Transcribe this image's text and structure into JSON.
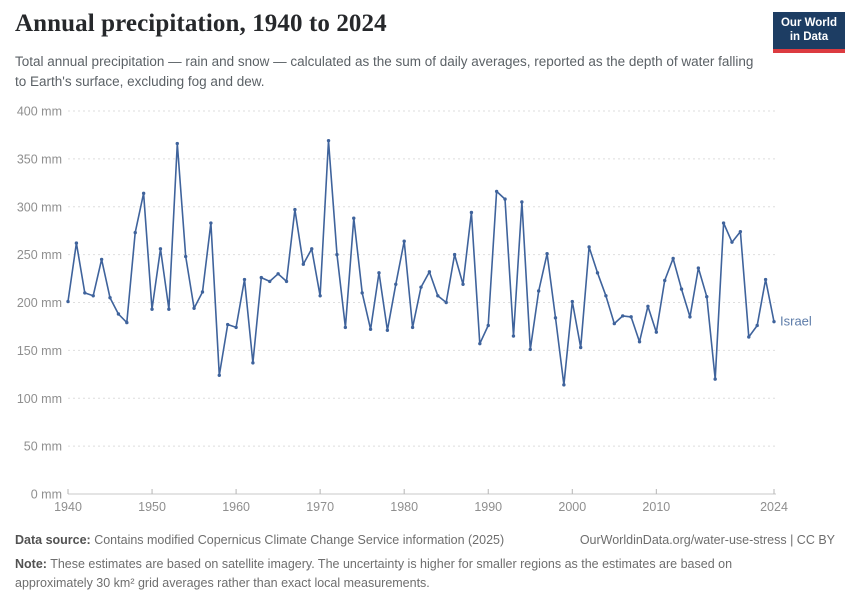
{
  "header": {
    "title": "Annual precipitation, 1940 to 2024",
    "subtitle": "Total annual precipitation — rain and snow — calculated as the sum of daily averages, reported as the depth of water falling to Earth's surface, excluding fog and dew.",
    "logo": {
      "line1": "Our World",
      "line2": "in Data",
      "bg_color": "#1d3d63",
      "stripe_color": "#dc3b40"
    }
  },
  "chart_data": {
    "type": "line",
    "title": "Annual precipitation, 1940 to 2024",
    "xlabel": "",
    "ylabel": "",
    "ylim": [
      0,
      400
    ],
    "xlim": [
      1940,
      2024
    ],
    "y_ticks": [
      0,
      50,
      100,
      150,
      200,
      250,
      300,
      350,
      400
    ],
    "y_tick_suffix": " mm",
    "x_ticks": [
      1940,
      1950,
      1960,
      1970,
      1980,
      1990,
      2000,
      2010,
      2024
    ],
    "grid": "horizontal dashed",
    "legend_position": "end-of-line label",
    "series": [
      {
        "name": "Israel",
        "color": "#3f639c",
        "x": [
          1940,
          1941,
          1942,
          1943,
          1944,
          1945,
          1946,
          1947,
          1948,
          1949,
          1950,
          1951,
          1952,
          1953,
          1954,
          1955,
          1956,
          1957,
          1958,
          1959,
          1960,
          1961,
          1962,
          1963,
          1964,
          1965,
          1966,
          1967,
          1968,
          1969,
          1970,
          1971,
          1972,
          1973,
          1974,
          1975,
          1976,
          1977,
          1978,
          1979,
          1980,
          1981,
          1982,
          1983,
          1984,
          1985,
          1986,
          1987,
          1988,
          1989,
          1990,
          1991,
          1992,
          1993,
          1994,
          1995,
          1996,
          1997,
          1998,
          1999,
          2000,
          2001,
          2002,
          2003,
          2004,
          2005,
          2006,
          2007,
          2008,
          2009,
          2010,
          2011,
          2012,
          2013,
          2014,
          2015,
          2016,
          2017,
          2018,
          2019,
          2020,
          2021,
          2022,
          2023,
          2024
        ],
        "values": [
          201,
          262,
          210,
          207,
          245,
          205,
          188,
          179,
          273,
          314,
          193,
          256,
          193,
          366,
          248,
          194,
          211,
          283,
          124,
          177,
          174,
          224,
          137,
          226,
          222,
          230,
          222,
          297,
          240,
          256,
          207,
          369,
          250,
          174,
          288,
          210,
          172,
          231,
          171,
          219,
          264,
          174,
          216,
          232,
          207,
          200,
          250,
          219,
          294,
          157,
          176,
          316,
          308,
          165,
          305,
          151,
          212,
          251,
          184,
          114,
          201,
          153,
          258,
          231,
          207,
          178,
          186,
          185,
          159,
          196,
          169,
          223,
          246,
          214,
          185,
          236,
          206,
          120,
          283,
          263,
          274,
          164,
          176,
          224,
          180
        ]
      }
    ]
  },
  "footer": {
    "datasource_label": "Data source:",
    "datasource_text": " Contains modified Copernicus Climate Change Service information (2025)",
    "link_text": "OurWorldinData.org/water-use-stress | CC BY",
    "note_label": "Note:",
    "note_text": " These estimates are based on satellite imagery. The uncertainty is higher for smaller regions as the estimates are based on approximately 30 km² grid averages rather than exact local measurements."
  }
}
